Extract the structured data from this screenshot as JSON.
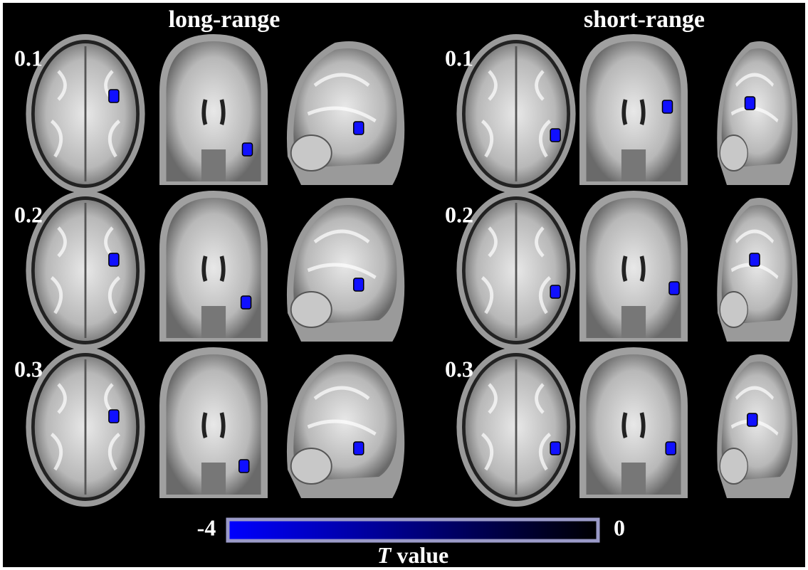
{
  "columns": [
    {
      "title": "long-range",
      "rows": [
        "0.1",
        "0.2",
        "0.3"
      ]
    },
    {
      "title": "short-range",
      "rows": [
        "0.1",
        "0.2",
        "0.3"
      ]
    }
  ],
  "colorbar": {
    "min": -4,
    "max": 0,
    "title_symbol": "T",
    "title_text": "value"
  }
}
